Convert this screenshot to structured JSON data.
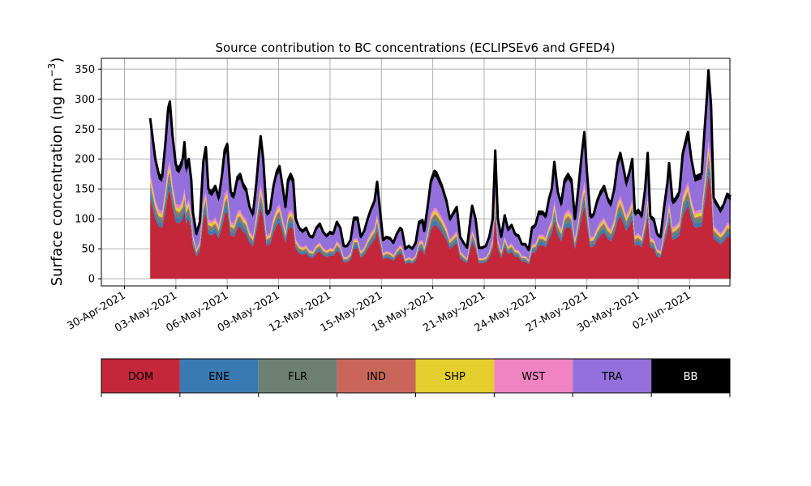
{
  "chart_data": {
    "type": "area",
    "stacked": true,
    "title": "Source contribution to BC concentrations (ECLIPSEv6 and GFED4)",
    "ylabel": "Surface concentration (ng m",
    "ylabel_superscript": "−3",
    "ylabel_close": ")",
    "ylim": [
      -12,
      368
    ],
    "yticks": [
      0,
      50,
      100,
      150,
      200,
      250,
      300,
      350
    ],
    "xlim": [
      -1.35,
      35.35
    ],
    "grid": true,
    "x_ticks": [
      {
        "x": 0,
        "label": "30-Apr-2021"
      },
      {
        "x": 3,
        "label": "03-May-2021"
      },
      {
        "x": 6,
        "label": "06-May-2021"
      },
      {
        "x": 9,
        "label": "09-May-2021"
      },
      {
        "x": 12,
        "label": "12-May-2021"
      },
      {
        "x": 15,
        "label": "15-May-2021"
      },
      {
        "x": 18,
        "label": "18-May-2021"
      },
      {
        "x": 21,
        "label": "21-May-2021"
      },
      {
        "x": 24,
        "label": "24-May-2021"
      },
      {
        "x": 27,
        "label": "27-May-2021"
      },
      {
        "x": 30,
        "label": "30-May-2021"
      },
      {
        "x": 33,
        "label": "02-Jun-2021"
      }
    ],
    "x_unit_note": "days from 30-Apr-2021",
    "series": [
      {
        "name": "DOM",
        "color": "#c4273a"
      },
      {
        "name": "ENE",
        "color": "#3a7ab3"
      },
      {
        "name": "FLR",
        "color": "#6d8071"
      },
      {
        "name": "IND",
        "color": "#c8665b"
      },
      {
        "name": "SHP",
        "color": "#e5cf2f"
      },
      {
        "name": "WST",
        "color": "#f083c2"
      },
      {
        "name": "TRA",
        "color": "#9370db"
      },
      {
        "name": "BB",
        "color": "#000000"
      }
    ],
    "total_points": [
      [
        1.5,
        268
      ],
      [
        1.8,
        200
      ],
      [
        2.0,
        175
      ],
      [
        2.2,
        170
      ],
      [
        2.4,
        230
      ],
      [
        2.55,
        285
      ],
      [
        2.65,
        296
      ],
      [
        2.8,
        240
      ],
      [
        3.0,
        190
      ],
      [
        3.2,
        185
      ],
      [
        3.4,
        200
      ],
      [
        3.5,
        228
      ],
      [
        3.6,
        185
      ],
      [
        3.75,
        200
      ],
      [
        3.9,
        165
      ],
      [
        4.0,
        110
      ],
      [
        4.2,
        75
      ],
      [
        4.4,
        95
      ],
      [
        4.6,
        195
      ],
      [
        4.75,
        220
      ],
      [
        4.9,
        150
      ],
      [
        5.1,
        145
      ],
      [
        5.3,
        155
      ],
      [
        5.5,
        135
      ],
      [
        5.7,
        175
      ],
      [
        5.85,
        215
      ],
      [
        6.0,
        225
      ],
      [
        6.2,
        145
      ],
      [
        6.4,
        140
      ],
      [
        6.6,
        170
      ],
      [
        6.75,
        175
      ],
      [
        6.9,
        160
      ],
      [
        7.1,
        150
      ],
      [
        7.3,
        120
      ],
      [
        7.5,
        108
      ],
      [
        7.7,
        160
      ],
      [
        7.85,
        210
      ],
      [
        7.95,
        238
      ],
      [
        8.1,
        200
      ],
      [
        8.3,
        110
      ],
      [
        8.5,
        115
      ],
      [
        8.7,
        155
      ],
      [
        8.9,
        180
      ],
      [
        9.05,
        188
      ],
      [
        9.2,
        160
      ],
      [
        9.4,
        120
      ],
      [
        9.55,
        165
      ],
      [
        9.7,
        175
      ],
      [
        9.85,
        165
      ],
      [
        10.0,
        100
      ],
      [
        10.2,
        85
      ],
      [
        10.4,
        80
      ],
      [
        10.6,
        85
      ],
      [
        10.8,
        72
      ],
      [
        11.0,
        70
      ],
      [
        11.2,
        85
      ],
      [
        11.4,
        92
      ],
      [
        11.6,
        78
      ],
      [
        11.8,
        72
      ],
      [
        12.0,
        78
      ],
      [
        12.2,
        76
      ],
      [
        12.4,
        95
      ],
      [
        12.6,
        85
      ],
      [
        12.8,
        55
      ],
      [
        13.0,
        55
      ],
      [
        13.2,
        65
      ],
      [
        13.4,
        102
      ],
      [
        13.6,
        102
      ],
      [
        13.8,
        70
      ],
      [
        14.0,
        80
      ],
      [
        14.2,
        100
      ],
      [
        14.4,
        117
      ],
      [
        14.6,
        130
      ],
      [
        14.75,
        162
      ],
      [
        14.9,
        120
      ],
      [
        15.1,
        65
      ],
      [
        15.3,
        70
      ],
      [
        15.5,
        68
      ],
      [
        15.7,
        60
      ],
      [
        15.9,
        75
      ],
      [
        16.1,
        85
      ],
      [
        16.2,
        82
      ],
      [
        16.4,
        50
      ],
      [
        16.6,
        55
      ],
      [
        16.8,
        50
      ],
      [
        17.0,
        60
      ],
      [
        17.2,
        95
      ],
      [
        17.4,
        98
      ],
      [
        17.5,
        80
      ],
      [
        17.7,
        120
      ],
      [
        17.9,
        165
      ],
      [
        18.1,
        180
      ],
      [
        18.2,
        178
      ],
      [
        18.5,
        158
      ],
      [
        18.8,
        130
      ],
      [
        19.0,
        100
      ],
      [
        19.2,
        110
      ],
      [
        19.4,
        120
      ],
      [
        19.6,
        70
      ],
      [
        19.8,
        60
      ],
      [
        20.0,
        52
      ],
      [
        20.2,
        100
      ],
      [
        20.3,
        122
      ],
      [
        20.5,
        100
      ],
      [
        20.7,
        52
      ],
      [
        20.9,
        52
      ],
      [
        21.1,
        55
      ],
      [
        21.3,
        70
      ],
      [
        21.5,
        100
      ],
      [
        21.65,
        214
      ],
      [
        21.8,
        100
      ],
      [
        22.0,
        70
      ],
      [
        22.2,
        106
      ],
      [
        22.4,
        82
      ],
      [
        22.6,
        90
      ],
      [
        22.8,
        75
      ],
      [
        23.0,
        72
      ],
      [
        23.2,
        58
      ],
      [
        23.4,
        58
      ],
      [
        23.6,
        48
      ],
      [
        23.8,
        86
      ],
      [
        24.0,
        90
      ],
      [
        24.2,
        112
      ],
      [
        24.4,
        112
      ],
      [
        24.6,
        105
      ],
      [
        24.8,
        135
      ],
      [
        24.95,
        150
      ],
      [
        25.1,
        195
      ],
      [
        25.3,
        145
      ],
      [
        25.5,
        125
      ],
      [
        25.7,
        165
      ],
      [
        25.9,
        175
      ],
      [
        26.1,
        165
      ],
      [
        26.3,
        100
      ],
      [
        26.5,
        150
      ],
      [
        26.7,
        208
      ],
      [
        26.85,
        245
      ],
      [
        27.0,
        180
      ],
      [
        27.2,
        105
      ],
      [
        27.4,
        108
      ],
      [
        27.6,
        130
      ],
      [
        27.8,
        145
      ],
      [
        28.0,
        155
      ],
      [
        28.2,
        135
      ],
      [
        28.4,
        125
      ],
      [
        28.6,
        150
      ],
      [
        28.8,
        195
      ],
      [
        28.95,
        210
      ],
      [
        29.1,
        190
      ],
      [
        29.3,
        160
      ],
      [
        29.5,
        180
      ],
      [
        29.65,
        200
      ],
      [
        29.8,
        110
      ],
      [
        30.0,
        115
      ],
      [
        30.2,
        105
      ],
      [
        30.4,
        150
      ],
      [
        30.55,
        210
      ],
      [
        30.7,
        105
      ],
      [
        30.9,
        100
      ],
      [
        31.1,
        75
      ],
      [
        31.3,
        70
      ],
      [
        31.5,
        118
      ],
      [
        31.7,
        160
      ],
      [
        31.8,
        193
      ],
      [
        32.0,
        130
      ],
      [
        32.2,
        135
      ],
      [
        32.4,
        145
      ],
      [
        32.6,
        210
      ],
      [
        32.75,
        228
      ],
      [
        32.9,
        245
      ],
      [
        33.1,
        200
      ],
      [
        33.3,
        170
      ],
      [
        33.5,
        173
      ],
      [
        33.7,
        175
      ],
      [
        33.85,
        240
      ],
      [
        34.0,
        300
      ],
      [
        34.1,
        348
      ],
      [
        34.25,
        290
      ],
      [
        34.4,
        135
      ],
      [
        34.6,
        125
      ],
      [
        34.8,
        115
      ],
      [
        35.0,
        125
      ],
      [
        35.2,
        142
      ],
      [
        35.4,
        137
      ]
    ],
    "breakdown_note": "fractions of total per source: DOM, ENE, FLR, IND, SHP, WST, TRA, BB",
    "fractions": [
      0.5,
      0.045,
      0.04,
      0.015,
      0.03,
      0.03,
      0.29,
      0.05
    ]
  }
}
